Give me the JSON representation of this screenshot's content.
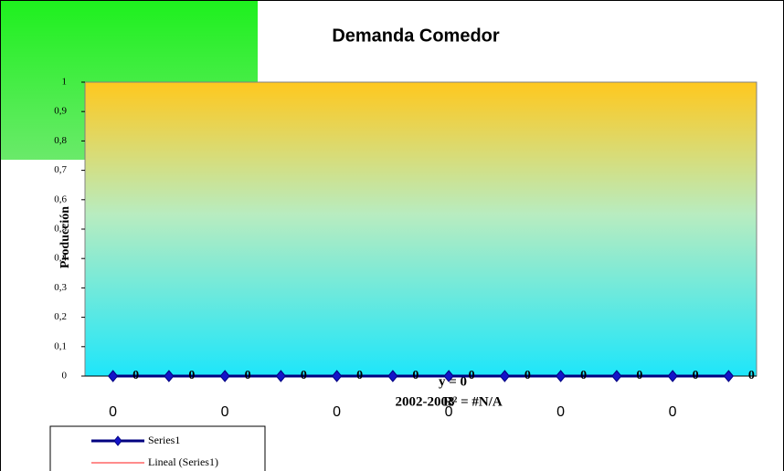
{
  "chart_data": {
    "type": "line",
    "title": "Demanda Comedor",
    "y_label": "Producción",
    "x_label": "2002-2003",
    "annotations": [
      "y = 0",
      "R² = #N/A"
    ],
    "categories": [
      "0",
      null,
      "0",
      null,
      "0",
      null,
      "0",
      null,
      "0",
      null,
      "0",
      null
    ],
    "series": [
      {
        "name": "Series1",
        "color": "#000080",
        "values": [
          0,
          0,
          0,
          0,
          0,
          0,
          0,
          0,
          0,
          0,
          0,
          0
        ]
      },
      {
        "name": "Lineal (Series1)",
        "color": "#ff8c8c",
        "values": [
          0,
          0,
          0,
          0,
          0,
          0,
          0,
          0,
          0,
          0,
          0,
          0
        ]
      }
    ],
    "ylim": [
      0,
      1
    ],
    "yticks": [
      0,
      {
        "value": 0.1,
        "label": "0,1"
      },
      {
        "value": 0.2,
        "label": "0,2"
      },
      {
        "value": 0.3,
        "label": "0,3"
      },
      {
        "value": 0.4,
        "label": "0,4"
      },
      {
        "value": 0.5,
        "label": "0,5"
      },
      {
        "value": 0.6,
        "label": "0,6"
      },
      {
        "value": 0.7,
        "label": "0,7"
      },
      {
        "value": 0.8,
        "label": "0,8"
      },
      {
        "value": 0.9,
        "label": "0,9"
      },
      1
    ]
  }
}
